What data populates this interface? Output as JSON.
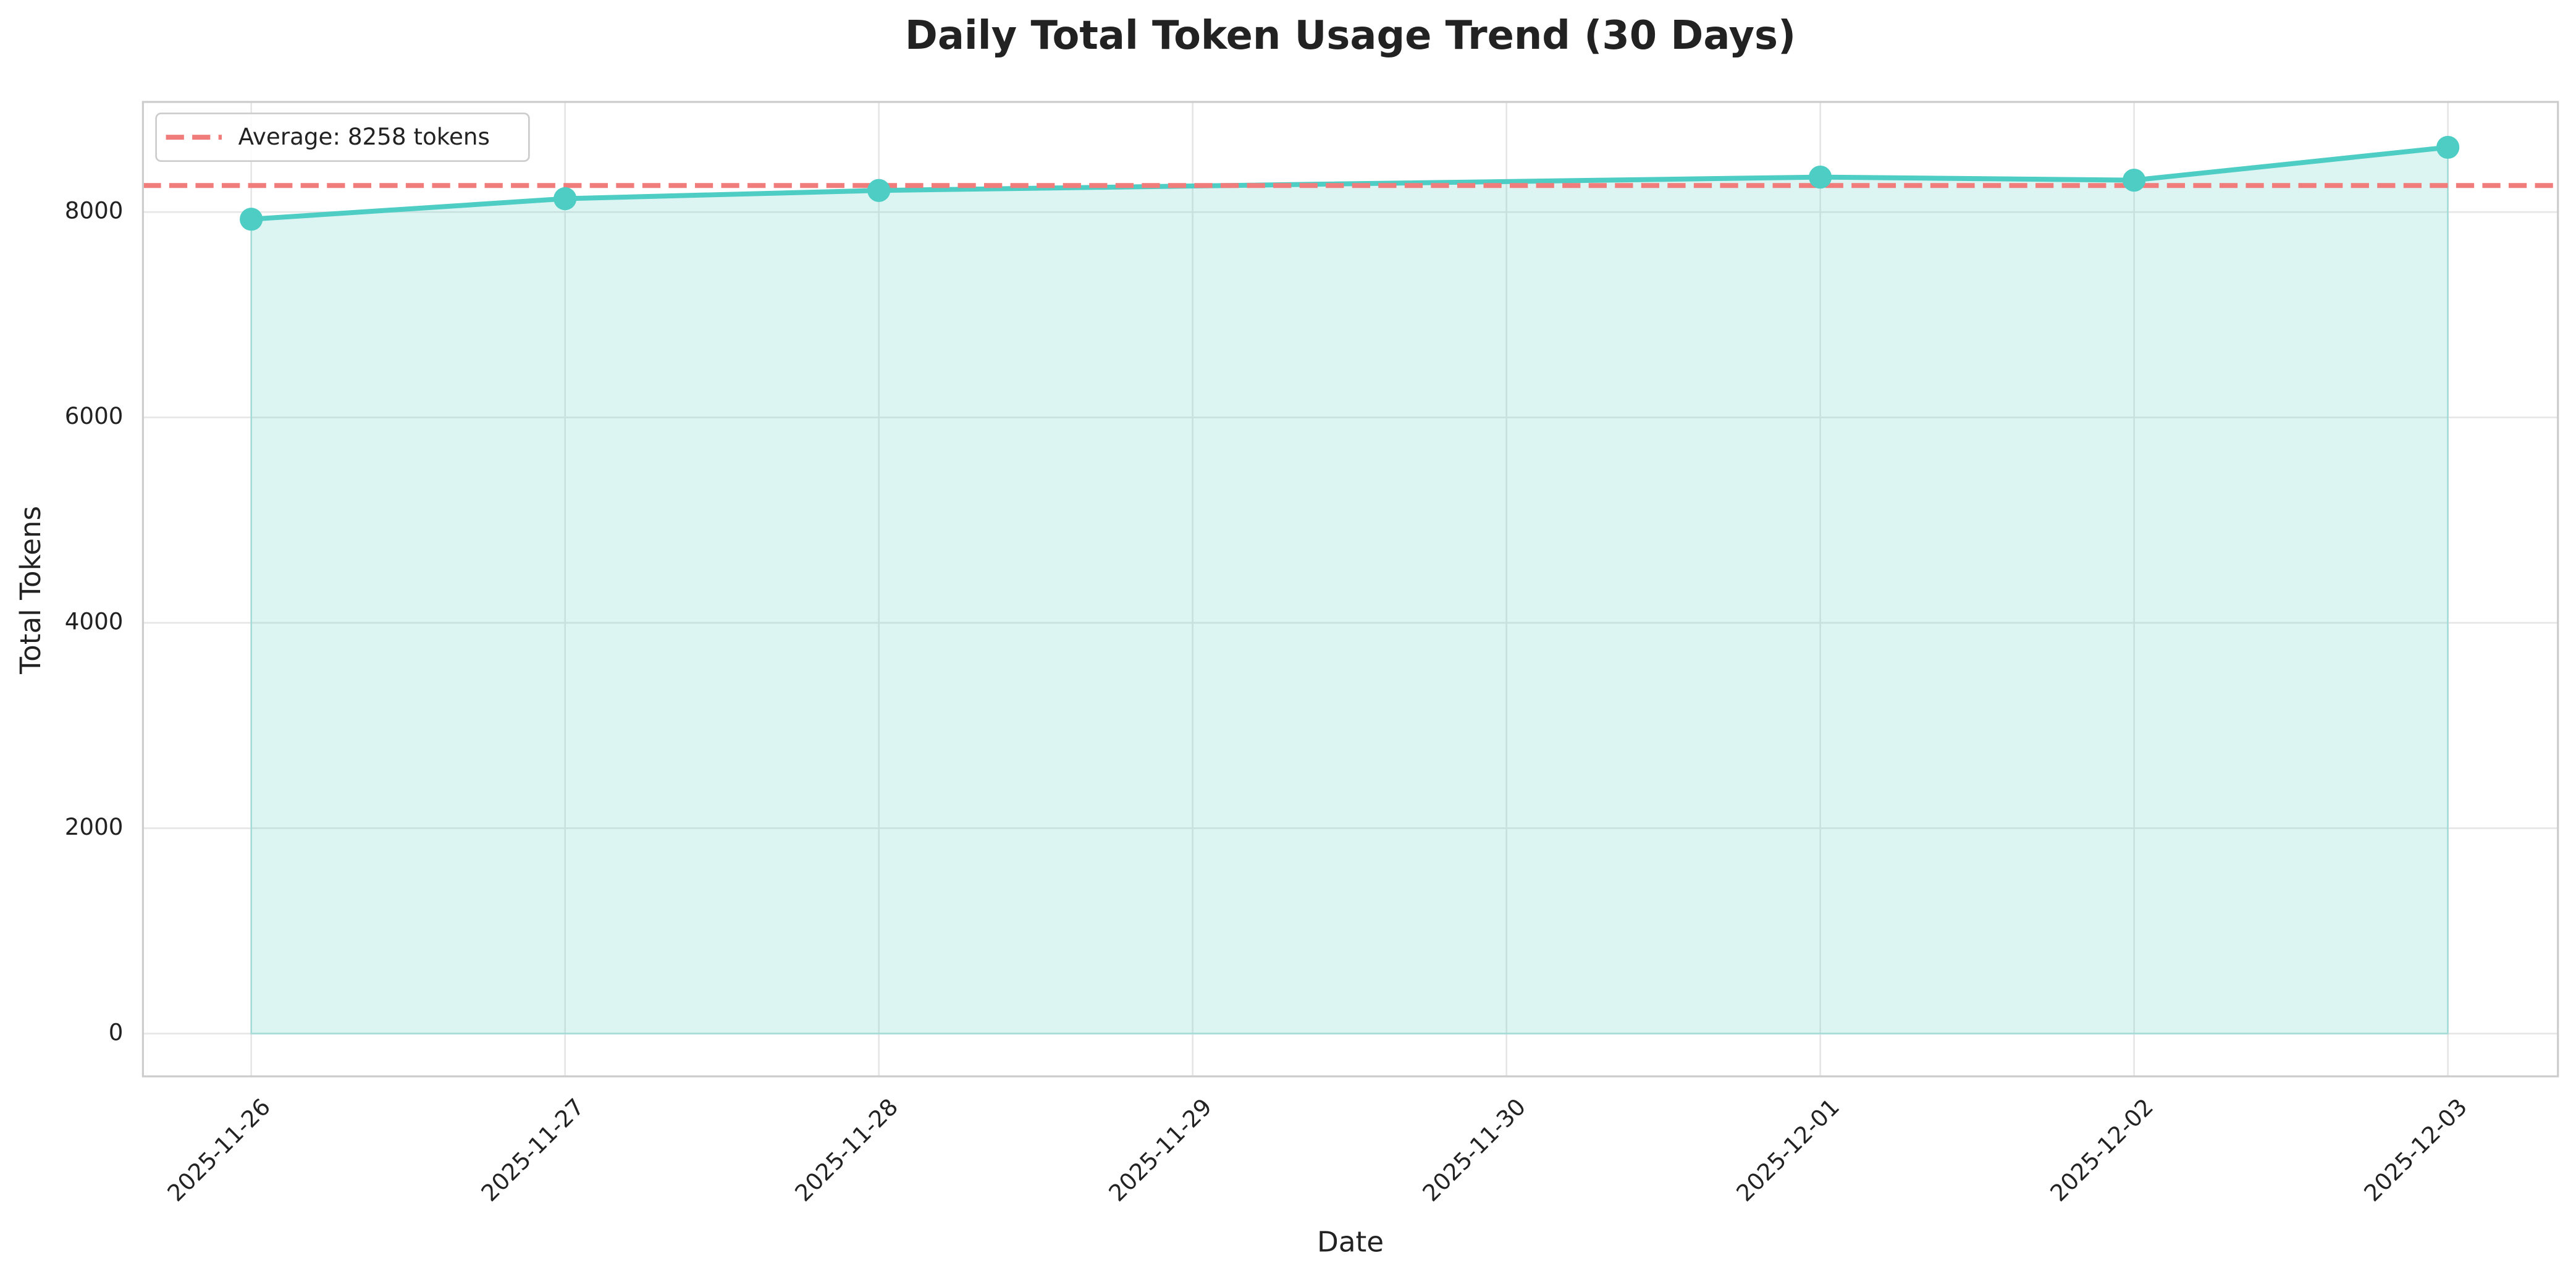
{
  "chart_data": {
    "type": "line",
    "title": "Daily Total Token Usage Trend (30 Days)",
    "xlabel": "Date",
    "ylabel": "Total Tokens",
    "x": [
      "2025-11-26",
      "2025-11-27",
      "2025-11-28",
      "2025-12-01",
      "2025-12-02",
      "2025-12-03"
    ],
    "values": [
      7930,
      8130,
      8210,
      8340,
      8310,
      8630
    ],
    "color": "#4ecdc4",
    "fill": true,
    "average": {
      "value": 8258,
      "label": "Average: 8258 tokens",
      "color": "#f07c7c"
    },
    "legend": "upper left",
    "grid": true,
    "xlim": [
      "2025-11-25T15:43:00Z",
      "2025-12-03T08:25:00Z"
    ],
    "xticks": [
      "2025-11-26",
      "2025-11-27",
      "2025-11-28",
      "2025-11-29",
      "2025-11-30",
      "2025-12-01",
      "2025-12-02",
      "2025-12-03"
    ],
    "ylim": [
      -416,
      9072
    ],
    "yticks": [
      0,
      2000,
      4000,
      6000,
      8000
    ]
  }
}
